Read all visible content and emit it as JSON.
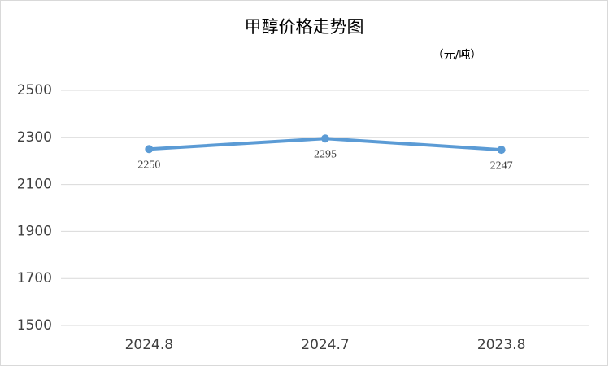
{
  "chart_data": {
    "type": "line",
    "title": "甲醇价格走势图",
    "unit_note": "（元/吨）",
    "categories": [
      "2024.8",
      "2024.7",
      "2023.8"
    ],
    "values": [
      2250,
      2295,
      2247
    ],
    "color": "#5b9bd5",
    "ylim": [
      1500,
      2500
    ],
    "yticks": [
      1500,
      1700,
      1900,
      2100,
      2300,
      2500
    ],
    "grid": true
  }
}
